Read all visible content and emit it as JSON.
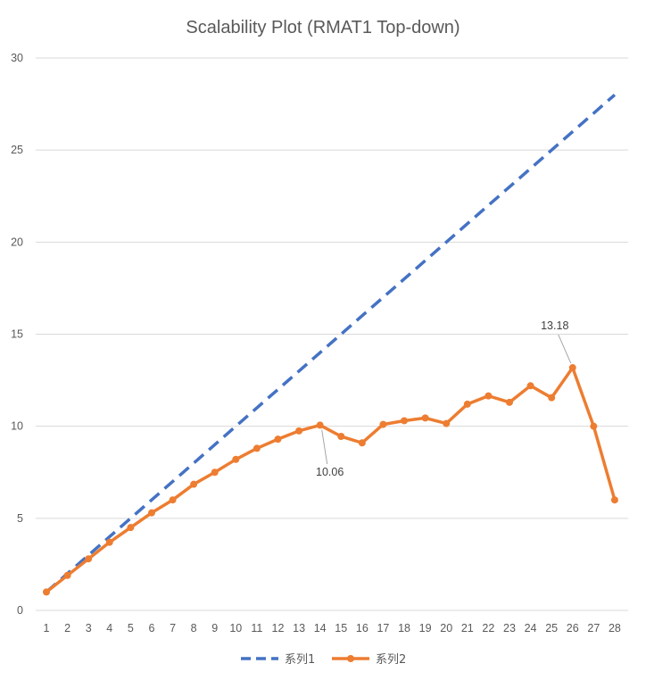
{
  "chart_data": {
    "type": "line",
    "title": "Scalability Plot (RMAT1 Top-down)",
    "xlabel": "",
    "ylabel": "",
    "x": [
      1,
      2,
      3,
      4,
      5,
      6,
      7,
      8,
      9,
      10,
      11,
      12,
      13,
      14,
      15,
      16,
      17,
      18,
      19,
      20,
      21,
      22,
      23,
      24,
      25,
      26,
      27,
      28
    ],
    "ylim": [
      0,
      30
    ],
    "yticks": [
      0,
      5,
      10,
      15,
      20,
      25,
      30
    ],
    "grid": true,
    "legend": "bottom",
    "series": [
      {
        "name": "系列1",
        "style": "dashed",
        "color": "#4472C4",
        "values": [
          1,
          2,
          3,
          4,
          5,
          6,
          7,
          8,
          9,
          10,
          11,
          12,
          13,
          14,
          15,
          16,
          17,
          18,
          19,
          20,
          21,
          22,
          23,
          24,
          25,
          26,
          27,
          28
        ]
      },
      {
        "name": "系列2",
        "style": "solid-markers",
        "color": "#ED7D31",
        "values": [
          1.0,
          1.9,
          2.8,
          3.7,
          4.5,
          5.3,
          6.0,
          6.85,
          7.5,
          8.2,
          8.8,
          9.3,
          9.75,
          10.06,
          9.45,
          9.1,
          10.1,
          10.3,
          10.45,
          10.15,
          11.2,
          11.65,
          11.3,
          12.2,
          11.55,
          13.18,
          10.0,
          6.0
        ]
      }
    ],
    "annotations": [
      {
        "series": 1,
        "x": 14,
        "text": "10.06"
      },
      {
        "series": 1,
        "x": 26,
        "text": "13.18"
      }
    ]
  }
}
